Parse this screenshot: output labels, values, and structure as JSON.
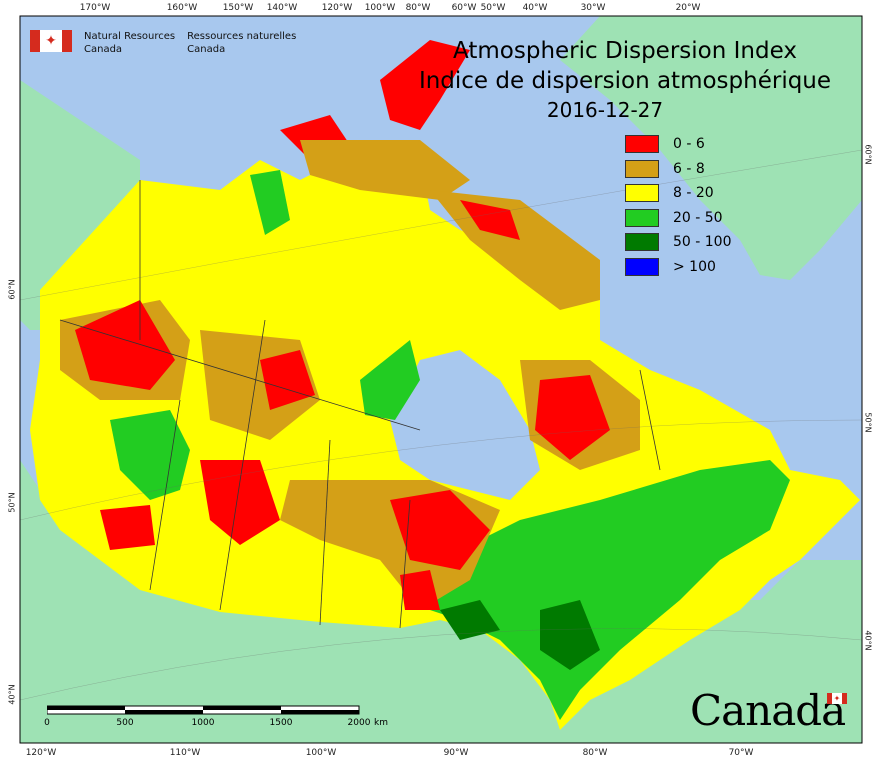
{
  "agency": {
    "en_line1": "Natural Resources",
    "en_line2": "Canada",
    "fr_line1": "Ressources naturelles",
    "fr_line2": "Canada"
  },
  "title": {
    "en": "Atmospheric Dispersion Index",
    "fr": "Indice de dispersion atmosphérique",
    "date": "2016-12-27"
  },
  "legend": [
    {
      "label": "0 - 6",
      "color": "#ff0000"
    },
    {
      "label": "6 - 8",
      "color": "#d4a017"
    },
    {
      "label": "8 - 20",
      "color": "#ffff00"
    },
    {
      "label": "20 - 50",
      "color": "#22cc22"
    },
    {
      "label": "50 - 100",
      "color": "#007a00"
    },
    {
      "label": "> 100",
      "color": "#0000ff"
    }
  ],
  "ticks_top": [
    "170°W",
    "160°W",
    "150°W",
    "140°W",
    "120°W",
    "100°W",
    "80°W",
    "60°W",
    "50°W",
    "40°W",
    "30°W",
    "20°W"
  ],
  "ticks_bottom": [
    "120°W",
    "110°W",
    "100°W",
    "90°W",
    "80°W",
    "70°W"
  ],
  "ticks_right": [
    "60°N",
    "50°N",
    "40°N"
  ],
  "ticks_left": [
    "60°N",
    "50°N",
    "40°N"
  ],
  "scale": {
    "labels": [
      "0",
      "500",
      "1000",
      "1500",
      "2000"
    ],
    "unit": "km"
  },
  "wordmark": "Canada",
  "colors": {
    "ocean": "#a8c8ee",
    "land_other": "#9ee2b4",
    "border": "#333333"
  }
}
